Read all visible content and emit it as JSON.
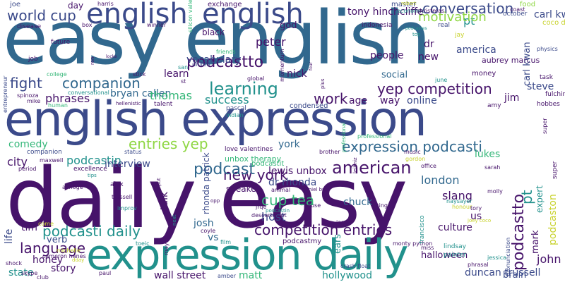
{
  "palette": {
    "dark_purple": "#46136a",
    "indigo": "#3b4a8a",
    "blue": "#31688e",
    "teal": "#21918c",
    "green": "#35b779",
    "lime": "#8fd744",
    "yellow": "#c8d22c"
  },
  "words": [
    {
      "text": "daily easy",
      "color": "#46136a"
    },
    {
      "text": "easy english",
      "color": "#31688e"
    },
    {
      "text": "english expression",
      "color": "#3b4a8a"
    },
    {
      "text": "expression daily",
      "color": "#21918c"
    },
    {
      "text": "english",
      "color": "#3b4a8a"
    },
    {
      "text": "english",
      "color": "#3b4a8a"
    },
    {
      "text": "conversation",
      "color": "#3b4a8a"
    },
    {
      "text": "world cup",
      "color": "#3b4a8a"
    },
    {
      "text": "yep competition",
      "color": "#46136a"
    },
    {
      "text": "learning",
      "color": "#21918c"
    },
    {
      "text": "fight",
      "color": "#3b4a8a"
    },
    {
      "text": "companion",
      "color": "#31688e"
    },
    {
      "text": "expression podcasti",
      "color": "#31688e"
    },
    {
      "text": "american",
      "color": "#46136a"
    },
    {
      "text": "competition entries",
      "color": "#46136a"
    },
    {
      "text": "podcasti daily",
      "color": "#21918c"
    },
    {
      "text": "entries yep",
      "color": "#8fd744"
    },
    {
      "text": "new york",
      "color": "#46136a"
    },
    {
      "text": "cup tea",
      "color": "#35b779"
    },
    {
      "text": "podcast",
      "color": "#31688e"
    },
    {
      "text": "podcastto",
      "color": "#46136a"
    },
    {
      "text": "pt",
      "color": "#21918c"
    },
    {
      "text": "work",
      "color": "#46136a"
    },
    {
      "text": "language",
      "color": "#46136a"
    },
    {
      "text": "host",
      "color": "#3b4a8a"
    },
    {
      "text": "josh",
      "color": "#31688e"
    },
    {
      "text": "matt",
      "color": "#35b779"
    },
    {
      "text": "hollywood",
      "color": "#21918c"
    },
    {
      "text": "wall street",
      "color": "#46136a"
    },
    {
      "text": "lewis unbox",
      "color": "#46136a"
    },
    {
      "text": "dr rhonda",
      "color": "#3b4a8a"
    },
    {
      "text": "london",
      "color": "#31688e"
    },
    {
      "text": "success",
      "color": "#21918c"
    },
    {
      "text": "phrases",
      "color": "#46136a"
    },
    {
      "text": "bryan callen",
      "color": "#31688e"
    },
    {
      "text": "thomas",
      "color": "#35b779"
    },
    {
      "text": "learn",
      "color": "#46136a"
    },
    {
      "text": "peter",
      "color": "#46136a"
    },
    {
      "text": "motivation",
      "color": "#8fd744"
    },
    {
      "text": "dr",
      "color": "#46136a"
    },
    {
      "text": "us",
      "color": "#46136a"
    },
    {
      "text": "john",
      "color": "#46136a"
    },
    {
      "text": "mark",
      "color": "#46136a"
    },
    {
      "text": "jim",
      "color": "#46136a"
    },
    {
      "text": "steve",
      "color": "#3b4a8a"
    },
    {
      "text": "carl kwan",
      "color": "#3b4a8a"
    },
    {
      "text": "america",
      "color": "#3b4a8a"
    },
    {
      "text": "new",
      "color": "#46136a"
    },
    {
      "text": "nick",
      "color": "#46136a"
    },
    {
      "text": "age",
      "color": "#46136a"
    },
    {
      "text": "way",
      "color": "#46136a"
    },
    {
      "text": "online",
      "color": "#3b4a8a"
    },
    {
      "text": "york",
      "color": "#31688e"
    },
    {
      "text": "city",
      "color": "#46136a"
    },
    {
      "text": "podcastin",
      "color": "#21918c"
    },
    {
      "text": "interview",
      "color": "#3b4a8a"
    },
    {
      "text": "talk",
      "color": "#46136a"
    },
    {
      "text": "lukes",
      "color": "#35b779"
    },
    {
      "text": "slang",
      "color": "#46136a"
    },
    {
      "text": "culture",
      "color": "#46136a"
    },
    {
      "text": "chuck",
      "color": "#31688e"
    },
    {
      "text": "vs",
      "color": "#31688e"
    },
    {
      "text": "honey",
      "color": "#46136a"
    },
    {
      "text": "state",
      "color": "#21918c"
    },
    {
      "text": "story",
      "color": "#46136a"
    },
    {
      "text": "tim",
      "color": "#46136a"
    },
    {
      "text": "life",
      "color": "#3b4a8a"
    },
    {
      "text": "comedy",
      "color": "#35b779"
    },
    {
      "text": "verb",
      "color": "#3b4a8a"
    },
    {
      "text": "vocabulary",
      "color": "#3b4a8a"
    },
    {
      "text": "people",
      "color": "#46136a"
    },
    {
      "text": "tony hinchcliffe",
      "color": "#46136a"
    },
    {
      "text": "black",
      "color": "#46136a"
    },
    {
      "text": "god",
      "color": "#46136a"
    },
    {
      "text": "day",
      "color": "#46136a"
    },
    {
      "text": "social",
      "color": "#31688e"
    },
    {
      "text": "duncan trussell",
      "color": "#3b4a8a"
    },
    {
      "text": "brain",
      "color": "#3b4a8a"
    },
    {
      "text": "podcaston",
      "color": "#c8d22c"
    },
    {
      "text": "expert",
      "color": "#21918c"
    },
    {
      "text": "aubrey marcus",
      "color": "#46136a"
    },
    {
      "text": "speaker",
      "color": "#46136a"
    },
    {
      "text": "rhonda patrick",
      "color": "#3b4a8a"
    },
    {
      "text": "halloween",
      "color": "#46136a"
    },
    {
      "text": "ears",
      "color": "#21918c"
    },
    {
      "text": "unbox therapy",
      "color": "#35b779"
    },
    {
      "text": "podcastit",
      "color": "#35b779"
    },
    {
      "text": "joe",
      "color": "#3b4a8a"
    },
    {
      "text": "disease",
      "color": "#46136a"
    },
    {
      "text": "harris",
      "color": "#46136a"
    },
    {
      "text": "exchange",
      "color": "#46136a"
    },
    {
      "text": "master",
      "color": "#3b4a8a"
    },
    {
      "text": "economic",
      "color": "#21918c"
    },
    {
      "text": "christmas",
      "color": "#46136a"
    },
    {
      "text": "october",
      "color": "#3b4a8a"
    },
    {
      "text": "food",
      "color": "#8fd744"
    },
    {
      "text": "coast",
      "color": "#46136a"
    },
    {
      "text": "coco diaz",
      "color": "#c8d22c"
    },
    {
      "text": "indonesia",
      "color": "#46136a"
    },
    {
      "text": "real",
      "color": "#3b4a8a"
    },
    {
      "text": "jay",
      "color": "#c8d22c"
    },
    {
      "text": "physics",
      "color": "#3b4a8a"
    },
    {
      "text": "money",
      "color": "#46136a"
    },
    {
      "text": "june",
      "color": "#21918c"
    },
    {
      "text": "task",
      "color": "#46136a"
    },
    {
      "text": "fulchiron",
      "color": "#46136a"
    },
    {
      "text": "hobbes",
      "color": "#46136a"
    },
    {
      "text": "amy",
      "color": "#46136a"
    },
    {
      "text": "july",
      "color": "#c8d22c"
    },
    {
      "text": "talent",
      "color": "#46136a"
    },
    {
      "text": "condensed",
      "color": "#3b4a8a"
    },
    {
      "text": "indian",
      "color": "#21918c"
    },
    {
      "text": "pascal",
      "color": "#3b4a8a"
    },
    {
      "text": "love valentines",
      "color": "#46136a"
    },
    {
      "text": "companion",
      "color": "#3b4a8a"
    },
    {
      "text": "status",
      "color": "#3b4a8a"
    },
    {
      "text": "alex",
      "color": "#46136a"
    },
    {
      "text": "excellence",
      "color": "#46136a"
    },
    {
      "text": "tips",
      "color": "#21918c"
    },
    {
      "text": "aj hoge",
      "color": "#46136a"
    },
    {
      "text": "trussell",
      "color": "#46136a"
    },
    {
      "text": "improv",
      "color": "#21918c"
    },
    {
      "text": "period",
      "color": "#46136a"
    },
    {
      "text": "toeic",
      "color": "#21918c"
    },
    {
      "text": "grass",
      "color": "#46136a"
    },
    {
      "text": "michelle",
      "color": "#c8d22c"
    },
    {
      "text": "cameron hanes",
      "color": "#46136a"
    },
    {
      "text": "shock",
      "color": "#46136a"
    },
    {
      "text": "skype",
      "color": "#46136a"
    },
    {
      "text": "club",
      "color": "#46136a"
    },
    {
      "text": "paul",
      "color": "#46136a"
    },
    {
      "text": "amber",
      "color": "#3b4a8a"
    },
    {
      "text": "crash float",
      "color": "#3b4a8a"
    },
    {
      "text": "podcastmy",
      "color": "#46136a"
    },
    {
      "text": "film",
      "color": "#21918c"
    },
    {
      "text": "jrqe",
      "color": "#46136a"
    },
    {
      "text": "descartes pt",
      "color": "#46136a"
    },
    {
      "text": "podcastin",
      "color": "#21918c"
    },
    {
      "text": "japan",
      "color": "#46136a"
    },
    {
      "text": "house",
      "color": "#46136a"
    },
    {
      "text": "animal",
      "color": "#46136a"
    },
    {
      "text": "daniel burt",
      "color": "#46136a"
    },
    {
      "text": "king",
      "color": "#46136a"
    },
    {
      "text": "office",
      "color": "#46136a"
    },
    {
      "text": "honour",
      "color": "#c8d22c"
    },
    {
      "text": "molly",
      "color": "#46136a"
    },
    {
      "text": "sarah",
      "color": "#46136a"
    },
    {
      "text": "gordon",
      "color": "#c8d22c"
    },
    {
      "text": "music",
      "color": "#46136a"
    },
    {
      "text": "leibniz",
      "color": "#46136a"
    },
    {
      "text": "brother",
      "color": "#46136a"
    },
    {
      "text": "professional",
      "color": "#35b779"
    },
    {
      "text": "francisco",
      "color": "#21918c"
    },
    {
      "text": "lindsay",
      "color": "#21918c"
    },
    {
      "text": "painter",
      "color": "#21918c"
    },
    {
      "text": "jessica",
      "color": "#21918c"
    },
    {
      "text": "pronunciation",
      "color": "#3b4a8a"
    },
    {
      "text": "phrasal",
      "color": "#46136a"
    },
    {
      "text": "joey coco",
      "color": "#c8d22c"
    },
    {
      "text": "tory",
      "color": "#46136a"
    },
    {
      "text": "monty python",
      "color": "#46136a"
    },
    {
      "text": "miss",
      "color": "#46136a"
    },
    {
      "text": "coyle",
      "color": "#46136a"
    },
    {
      "text": "opp",
      "color": "#46136a"
    },
    {
      "text": "next",
      "color": "#21918c"
    },
    {
      "text": "may",
      "color": "#46136a"
    },
    {
      "text": "put",
      "color": "#46136a"
    },
    {
      "text": "come",
      "color": "#c8d22c"
    },
    {
      "text": "dday",
      "color": "#c8d22c"
    },
    {
      "text": "maxwell",
      "color": "#46136a"
    },
    {
      "text": "friends",
      "color": "#35b779"
    },
    {
      "text": "united",
      "color": "#3b4a8a"
    },
    {
      "text": "san",
      "color": "#21918c"
    },
    {
      "text": "st",
      "color": "#46136a"
    },
    {
      "text": "global",
      "color": "#46136a"
    },
    {
      "text": "momentum",
      "color": "#46136a"
    },
    {
      "text": "plus",
      "color": "#46136a"
    },
    {
      "text": "job",
      "color": "#46136a"
    },
    {
      "text": "future",
      "color": "#46136a"
    },
    {
      "text": "college",
      "color": "#35b779"
    },
    {
      "text": "human",
      "color": "#35b779"
    },
    {
      "text": "spinoza",
      "color": "#46136a"
    },
    {
      "text": "mike",
      "color": "#46136a"
    },
    {
      "text": "conversational",
      "color": "#21918c"
    },
    {
      "text": "hellenistic",
      "color": "#46136a"
    },
    {
      "text": "stick",
      "color": "#46136a"
    },
    {
      "text": "ron",
      "color": "#46136a"
    },
    {
      "text": "locke",
      "color": "#46136a"
    },
    {
      "text": "box",
      "color": "#46136a"
    },
    {
      "text": "winner",
      "color": "#46136a"
    },
    {
      "text": "robert",
      "color": "#c8d22c"
    },
    {
      "text": "top",
      "color": "#21918c"
    },
    {
      "text": "podcastes",
      "color": "#21918c"
    },
    {
      "text": "entrepreneur",
      "color": "#3b4a8a"
    },
    {
      "text": "four",
      "color": "#46136a"
    },
    {
      "text": "super",
      "color": "#46136a"
    },
    {
      "text": "naysayer",
      "color": "#21918c"
    },
    {
      "text": "silicon valley",
      "color": "#35b779"
    },
    {
      "text": "eminem",
      "color": "#21918c"
    },
    {
      "text": "show",
      "color": "#46136a"
    },
    {
      "text": "brendan schaub",
      "color": "#3b4a8a"
    },
    {
      "text": "dark",
      "color": "#46136a"
    },
    {
      "text": "an",
      "color": "#35b779"
    }
  ]
}
